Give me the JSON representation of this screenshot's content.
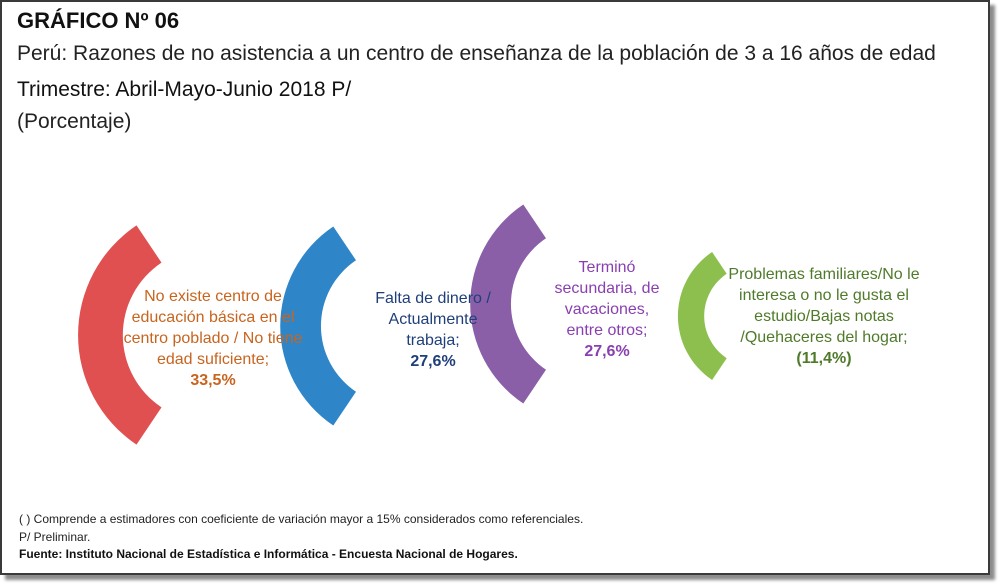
{
  "header": {
    "label": "GRÁFICO Nº 06",
    "subtitle": "Perú: Razones de no asistencia a un centro de enseñanza de la población de 3 a 16 años de edad",
    "period": "Trimestre: Abril-Mayo-Junio 2018 P/",
    "unit": "(Porcentaje)"
  },
  "chart_data": {
    "type": "donut-arcs",
    "unit": "%",
    "categories": [
      "No existe centro de educación básica en el centro poblado / No tiene edad suficiente;",
      "Falta de dinero / Actualmente trabaja;",
      "Terminó secundaria, de vacaciones, entre otros;",
      "Problemas familiares/No le interesa o no le gusta el estudio/Bajas notas /Quehaceres del hogar;"
    ],
    "values": [
      33.5,
      27.6,
      27.6,
      11.4
    ],
    "value_labels": [
      "33,5%",
      "27,6%",
      "27,6%",
      "(11,4%)"
    ],
    "colors": [
      "#e05050",
      "#2e86c8",
      "#8a5fa8",
      "#8dbf4e"
    ],
    "text_colors": [
      "#c8641e",
      "#1f3f7a",
      "#8a3fb0",
      "#4f7a2a"
    ]
  },
  "footer": {
    "note": "( ) Comprende a estimadores con coeficiente de variación mayor a 15% considerados como referenciales.",
    "prelim": "P/ Preliminar.",
    "source": "Fuente: Instituto Nacional de Estadística e Informática - Encuesta Nacional de Hogares."
  }
}
